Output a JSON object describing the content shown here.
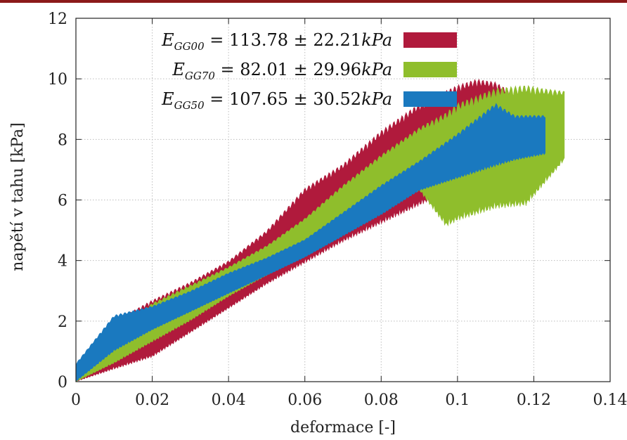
{
  "colors": {
    "top_bar": "#8b1a1a",
    "grid": "#bdbdbd",
    "axes": "#222222"
  },
  "chart_data": {
    "type": "area",
    "xlabel": "deformace [-]",
    "ylabel": "napětí v tahu [kPa]",
    "xlim": [
      0,
      0.14
    ],
    "ylim": [
      0,
      12
    ],
    "x_ticks": [
      0,
      0.02,
      0.04,
      0.06,
      0.08,
      0.1,
      0.12,
      0.14
    ],
    "x_tick_labels": [
      "0",
      "0.02",
      "0.04",
      "0.06",
      "0.08",
      "0.1",
      "0.12",
      "0.14"
    ],
    "y_ticks": [
      0,
      2,
      4,
      6,
      8,
      10,
      12
    ],
    "y_tick_labels": [
      "0",
      "2",
      "4",
      "6",
      "8",
      "10",
      "12"
    ],
    "grid": true,
    "legend_position": "top-left",
    "series": [
      {
        "name": "E_GG00 = 113.78 ± 22.21kPa",
        "legend": {
          "main": "E",
          "sub": "GG00",
          "rest": " = 113.78 ± 22.21",
          "unit": "kPa"
        },
        "color": "#b01a3c",
        "x": [
          0,
          0.01,
          0.02,
          0.03,
          0.04,
          0.05,
          0.06,
          0.07,
          0.08,
          0.09,
          0.1,
          0.105,
          0.11,
          0.115,
          0.118
        ],
        "upper": [
          0.5,
          2.0,
          2.7,
          3.3,
          4.0,
          5.0,
          6.4,
          7.2,
          8.3,
          9.2,
          9.8,
          10.0,
          9.9,
          9.5,
          9.3
        ],
        "lower": [
          0,
          0.4,
          0.8,
          1.6,
          2.4,
          3.2,
          3.9,
          4.6,
          5.2,
          5.8,
          6.4,
          6.7,
          6.9,
          7.0,
          7.0
        ]
      },
      {
        "name": "E_GG70 = 82.01 ± 29.96kPa",
        "legend": {
          "main": "E",
          "sub": "GG70",
          "rest": " = 82.01 ± 29.96",
          "unit": "kPa"
        },
        "color": "#8fbe2c",
        "x": [
          0,
          0.01,
          0.02,
          0.03,
          0.04,
          0.05,
          0.06,
          0.07,
          0.08,
          0.09,
          0.097,
          0.1,
          0.11,
          0.118,
          0.122,
          0.128
        ],
        "upper": [
          0.3,
          1.6,
          2.6,
          3.2,
          3.8,
          4.5,
          5.4,
          6.5,
          7.5,
          8.4,
          8.9,
          9.2,
          9.7,
          9.8,
          9.7,
          9.6
        ],
        "lower": [
          0,
          0.6,
          1.3,
          2.0,
          2.8,
          3.5,
          4.3,
          5.0,
          5.7,
          6.3,
          5.1,
          5.3,
          5.7,
          5.8,
          6.4,
          7.3
        ]
      },
      {
        "name": "E_GG50 = 107.65 ± 30.52kPa",
        "legend": {
          "main": "E",
          "sub": "GG50",
          "rest": " = 107.65 ± 30.52",
          "unit": "kPa"
        },
        "color": "#1a79bf",
        "x": [
          0,
          0.01,
          0.02,
          0.03,
          0.04,
          0.05,
          0.06,
          0.07,
          0.08,
          0.09,
          0.1,
          0.11,
          0.115,
          0.123
        ],
        "upper": [
          0.6,
          2.2,
          2.5,
          3.0,
          3.6,
          4.1,
          4.7,
          5.6,
          6.5,
          7.3,
          8.2,
          9.2,
          8.8,
          8.8
        ],
        "lower": [
          0,
          1.0,
          1.7,
          2.3,
          2.9,
          3.5,
          4.1,
          4.8,
          5.5,
          6.3,
          6.7,
          7.1,
          7.3,
          7.5
        ]
      }
    ]
  }
}
